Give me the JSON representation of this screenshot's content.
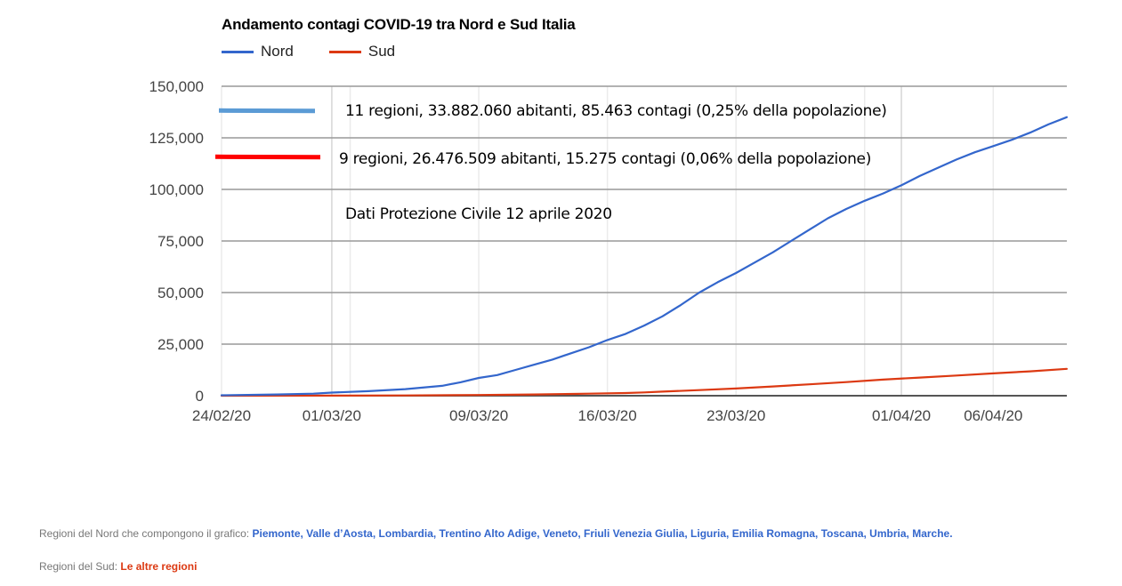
{
  "chart_data": {
    "type": "line",
    "title": "Andamento contagi COVID-19 tra Nord e Sud Italia",
    "xlabel": "",
    "ylabel": "",
    "ylim": [
      0,
      150000
    ],
    "xlim_days": [
      0,
      46
    ],
    "grid": true,
    "legend_position": "top-left",
    "y_ticks": [
      {
        "value": 0,
        "label": "0"
      },
      {
        "value": 25000,
        "label": "25,000"
      },
      {
        "value": 50000,
        "label": "50,000"
      },
      {
        "value": 75000,
        "label": "75,000"
      },
      {
        "value": 100000,
        "label": "100,000"
      },
      {
        "value": 125000,
        "label": "125,000"
      },
      {
        "value": 150000,
        "label": "150,000"
      }
    ],
    "x_ticks": [
      {
        "day": 0,
        "label": "24/02/20"
      },
      {
        "day": 6,
        "label": "01/03/20"
      },
      {
        "day": 14,
        "label": "09/03/20"
      },
      {
        "day": 21,
        "label": "16/03/20"
      },
      {
        "day": 28,
        "label": "23/03/20"
      },
      {
        "day": 37,
        "label": "01/04/20"
      },
      {
        "day": 42,
        "label": "06/04/20"
      }
    ],
    "minor_x_grid_days": [
      7,
      35
    ],
    "series": [
      {
        "name": "Nord",
        "color": "#3366cc",
        "x": [
          0,
          3,
          5,
          6,
          8,
          10,
          12,
          13,
          14,
          15,
          16,
          17,
          18,
          19,
          20,
          21,
          22,
          23,
          24,
          25,
          26,
          27,
          28,
          29,
          30,
          31,
          32,
          33,
          34,
          35,
          36,
          37,
          38,
          39,
          40,
          41,
          42,
          43,
          44,
          45,
          46
        ],
        "values": [
          200,
          600,
          1000,
          1500,
          2200,
          3200,
          4800,
          6500,
          8600,
          10000,
          12500,
          15000,
          17500,
          20500,
          23500,
          27000,
          30000,
          34000,
          38500,
          44000,
          50000,
          55000,
          59500,
          64500,
          69500,
          75000,
          80500,
          86000,
          90500,
          94500,
          98000,
          102000,
          106500,
          110500,
          114500,
          118000,
          121000,
          124000,
          127500,
          131500,
          135000
        ]
      },
      {
        "name": "Sud",
        "color": "#dc3912",
        "x": [
          0,
          5,
          10,
          14,
          17,
          20,
          22,
          23,
          24,
          26,
          28,
          30,
          32,
          34,
          36,
          38,
          40,
          42,
          44,
          46
        ],
        "values": [
          0,
          50,
          150,
          350,
          600,
          1000,
          1300,
          1600,
          2000,
          2700,
          3500,
          4500,
          5500,
          6600,
          7800,
          8800,
          9800,
          10800,
          11800,
          13000
        ]
      }
    ]
  },
  "annotations": {
    "nord_text": "11 regioni,  33.882.060  abitanti, 85.463 contagi (0,25% della popolazione)",
    "sud_text": "9 regioni,  26.476.509 abitanti, 15.275 contagi (0,06% della popolazione)",
    "source_text": "Dati Protezione Civile 12 aprile 2020",
    "nord_bar_color": "#5b9bd5",
    "sud_bar_color": "#ff0000"
  },
  "footer": {
    "nord_label": "Regioni del Nord che compongono il grafico: ",
    "nord_regions": "Piemonte, Valle d’Aosta, Lombardia, Trentino Alto Adige, Veneto, Friuli Venezia Giulia, Liguria, Emilia Romagna, Toscana, Umbria, Marche.",
    "sud_label": "Regioni del Sud: ",
    "sud_regions": "Le altre regioni",
    "nord_color": "#3366cc",
    "sud_color": "#dc3912"
  }
}
